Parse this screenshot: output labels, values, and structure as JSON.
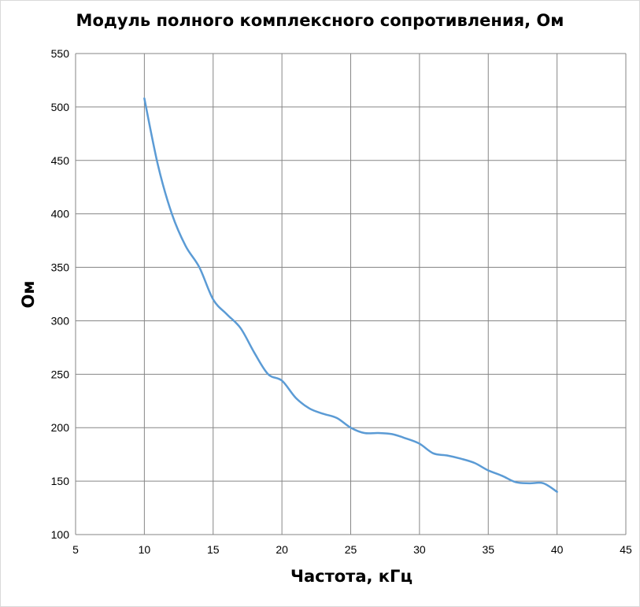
{
  "chart_data": {
    "type": "line",
    "title": "Модуль полного комплексного сопротивления, Ом",
    "xlabel": "Частота, кГц",
    "ylabel": "Ом",
    "xlim": [
      5,
      45
    ],
    "ylim": [
      100,
      550
    ],
    "xticks": [
      5,
      10,
      15,
      20,
      25,
      30,
      35,
      40,
      45
    ],
    "yticks": [
      100,
      150,
      200,
      250,
      300,
      350,
      400,
      450,
      500,
      550
    ],
    "grid": true,
    "legend": "none",
    "series": [
      {
        "color": "#5b9bd5",
        "x": [
          10,
          11,
          12,
          13,
          14,
          15,
          16,
          17,
          18,
          19,
          20,
          21,
          22,
          23,
          24,
          25,
          26,
          27,
          28,
          29,
          30,
          31,
          32,
          33,
          34,
          35,
          36,
          37,
          38,
          39,
          40
        ],
        "y": [
          508,
          445,
          400,
          370,
          350,
          320,
          306,
          293,
          270,
          250,
          244,
          228,
          218,
          213,
          209,
          200,
          195,
          195,
          194,
          190,
          185,
          176,
          174,
          171,
          167,
          160,
          155,
          149,
          148,
          148,
          140
        ]
      }
    ]
  }
}
